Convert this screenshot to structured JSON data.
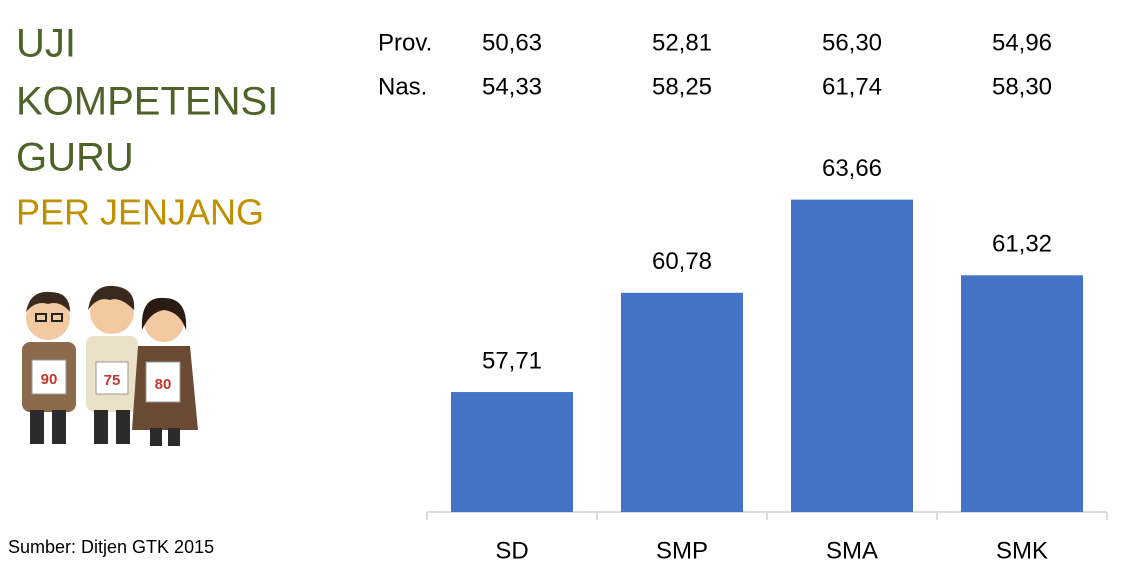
{
  "chart_data": {
    "type": "bar",
    "title": [
      "UJI",
      "KOMPETENSI",
      "GURU"
    ],
    "subtitle": "PER JENJANG",
    "source": "Sumber: Ditjen GTK 2015",
    "categories": [
      "SD",
      "SMP",
      "SMA",
      "SMK"
    ],
    "values": [
      57.71,
      60.78,
      63.66,
      61.32
    ],
    "value_labels": [
      "57,71",
      "60,78",
      "63,66",
      "61,32"
    ],
    "color": "#4472c4",
    "ylim": [
      54,
      66
    ],
    "rows": [
      {
        "label": "Prov.",
        "values": [
          50.63,
          52.81,
          56.3,
          54.96
        ],
        "value_labels": [
          "50,63",
          "52,81",
          "56,30",
          "54,96"
        ]
      },
      {
        "label": "Nas.",
        "values": [
          54.33,
          58.25,
          61.74,
          58.3
        ],
        "value_labels": [
          "54,33",
          "58,25",
          "61,74",
          "58,30"
        ]
      }
    ],
    "illustration_labels": [
      "90",
      "75",
      "80"
    ]
  }
}
